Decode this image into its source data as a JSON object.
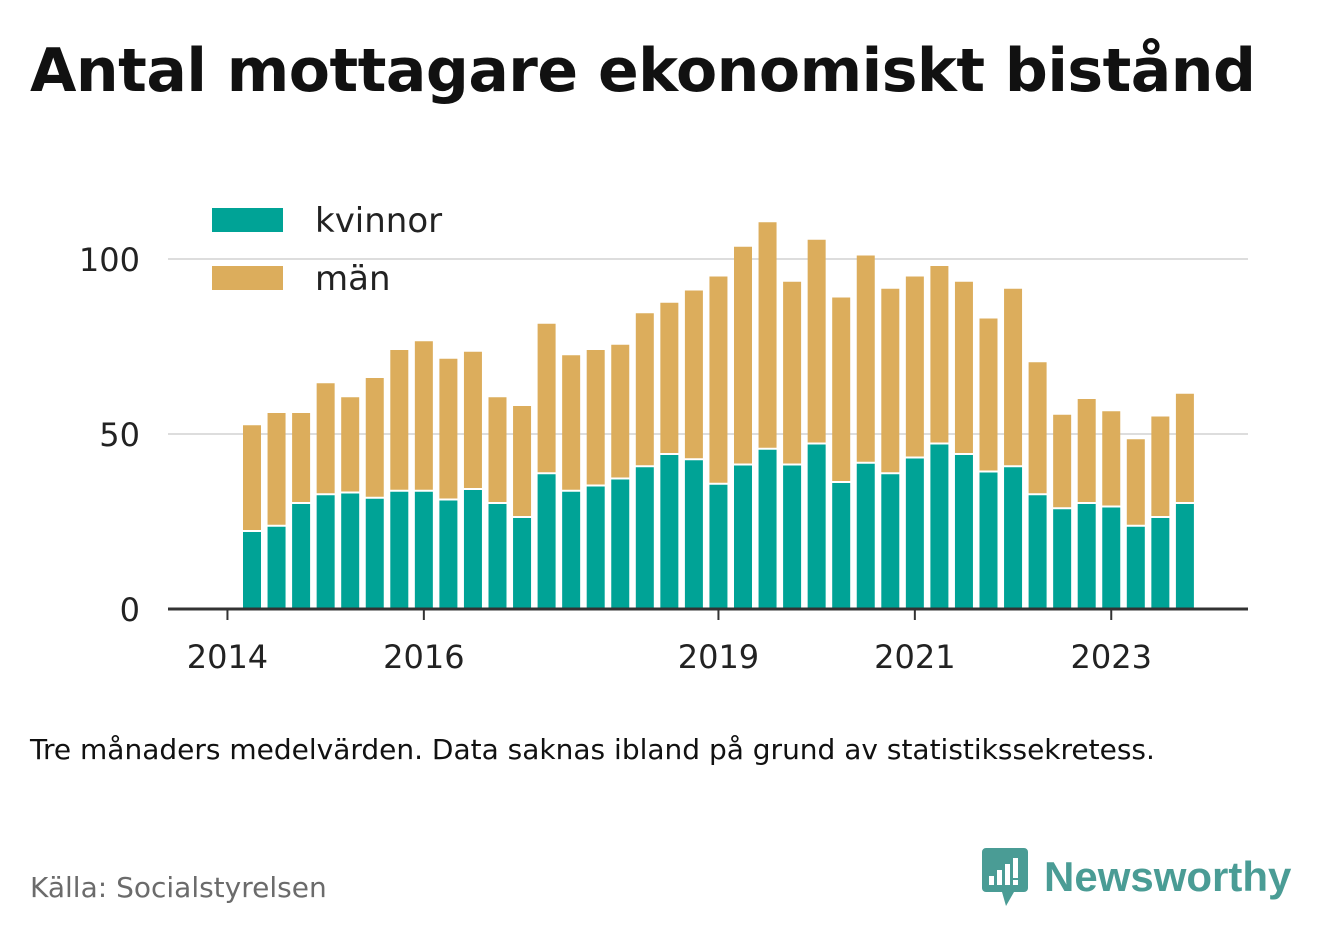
{
  "title": "Antal mottagare ekonomiskt bistånd",
  "note": "Tre månaders medelvärden. Data saknas ibland på grund av statistikssekretess.",
  "source": "Källa: Socialstyrelsen",
  "brand": {
    "name": "Newsworthy",
    "color": "#4a9c95"
  },
  "colors": {
    "kvinnor": "#00a396",
    "man": "#dcad5c",
    "grid": "#dddddd",
    "axis": "#333333"
  },
  "chart_data": {
    "type": "bar",
    "stacked": true,
    "x": [
      "2014Q2",
      "2014Q3",
      "2014Q4",
      "2015Q1",
      "2015Q2",
      "2015Q3",
      "2015Q4",
      "2016Q1",
      "2016Q2",
      "2016Q3",
      "2016Q4",
      "2017Q1",
      "2017Q2",
      "2017Q3",
      "2017Q4",
      "2018Q1",
      "2018Q2",
      "2018Q3",
      "2018Q4",
      "2019Q1",
      "2019Q2",
      "2019Q3",
      "2019Q4",
      "2020Q1",
      "2020Q2",
      "2020Q3",
      "2020Q4",
      "2021Q1",
      "2021Q2",
      "2021Q3",
      "2021Q4",
      "2022Q1",
      "2022Q2",
      "2022Q3",
      "2022Q4",
      "2023Q1",
      "2023Q2",
      "2023Q3",
      "2023Q4"
    ],
    "series": [
      {
        "name": "kvinnor",
        "values": [
          22,
          23.5,
          30,
          32.5,
          33,
          31.5,
          33.5,
          33.5,
          31,
          34,
          30,
          26,
          38.5,
          33.5,
          35,
          37,
          40.5,
          44,
          42.5,
          35.5,
          41,
          45.5,
          41,
          47,
          36,
          41.5,
          38.5,
          43,
          47,
          44,
          39,
          40.5,
          32.5,
          28.5,
          30,
          29,
          23.5,
          26,
          30
        ]
      },
      {
        "name": "män",
        "values": [
          30.5,
          32.5,
          26,
          32,
          27.5,
          34.5,
          40.5,
          43,
          40.5,
          39.5,
          30.5,
          32,
          43,
          39,
          39,
          38.5,
          44,
          43.5,
          48.5,
          59.5,
          62.5,
          65,
          52.5,
          58.5,
          53,
          59.5,
          53,
          52,
          51,
          49.5,
          44,
          51,
          38,
          27,
          30,
          27.5,
          25,
          29,
          31.5
        ]
      }
    ],
    "xticks": [
      "2014",
      "2016",
      "2019",
      "2021",
      "2023"
    ],
    "yticks": [
      0,
      50,
      100
    ],
    "ylim": [
      0,
      115
    ],
    "legend": {
      "position": "top-left",
      "entries": [
        "kvinnor",
        "män"
      ]
    },
    "grid": true
  }
}
